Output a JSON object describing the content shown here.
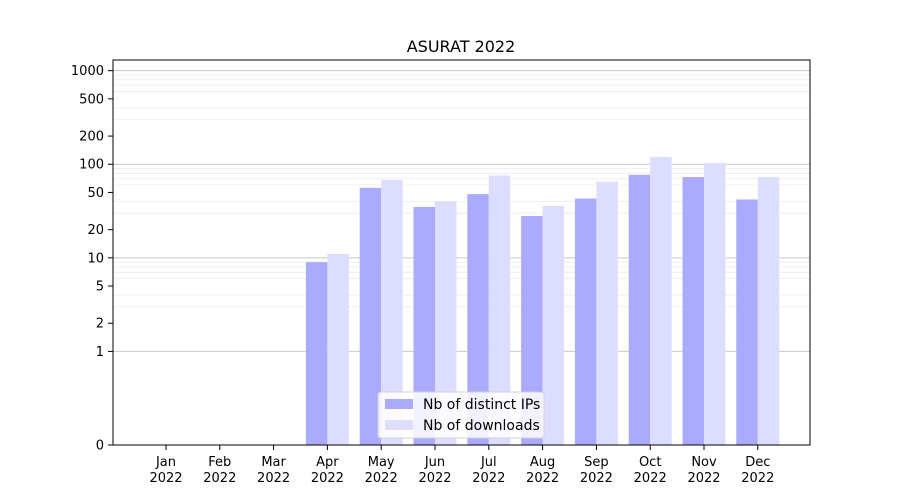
{
  "chart_data": {
    "type": "bar",
    "title": "ASURAT 2022",
    "xlabel": "",
    "ylabel": "",
    "y_scale": "symlog",
    "ylim": [
      0,
      1300
    ],
    "y_ticks": [
      0,
      1,
      2,
      5,
      10,
      20,
      50,
      100,
      200,
      500,
      1000
    ],
    "y_tick_labels": [
      "0",
      "1",
      "2",
      "5",
      "10",
      "20",
      "50",
      "100",
      "200",
      "500",
      "1000"
    ],
    "categories": [
      {
        "month": "Jan",
        "year": "2022"
      },
      {
        "month": "Feb",
        "year": "2022"
      },
      {
        "month": "Mar",
        "year": "2022"
      },
      {
        "month": "Apr",
        "year": "2022"
      },
      {
        "month": "May",
        "year": "2022"
      },
      {
        "month": "Jun",
        "year": "2022"
      },
      {
        "month": "Jul",
        "year": "2022"
      },
      {
        "month": "Aug",
        "year": "2022"
      },
      {
        "month": "Sep",
        "year": "2022"
      },
      {
        "month": "Oct",
        "year": "2022"
      },
      {
        "month": "Nov",
        "year": "2022"
      },
      {
        "month": "Dec",
        "year": "2022"
      }
    ],
    "series": [
      {
        "name": "Nb of distinct IPs",
        "color": "#aaaaff",
        "values": [
          0,
          0,
          0,
          9,
          56,
          35,
          48,
          28,
          43,
          77,
          73,
          42
        ]
      },
      {
        "name": "Nb of downloads",
        "color": "#ddddff",
        "values": [
          0,
          0,
          0,
          11,
          68,
          40,
          76,
          36,
          65,
          120,
          103,
          73
        ]
      }
    ],
    "grid": "horizontal",
    "legend_position": "lower-center"
  }
}
